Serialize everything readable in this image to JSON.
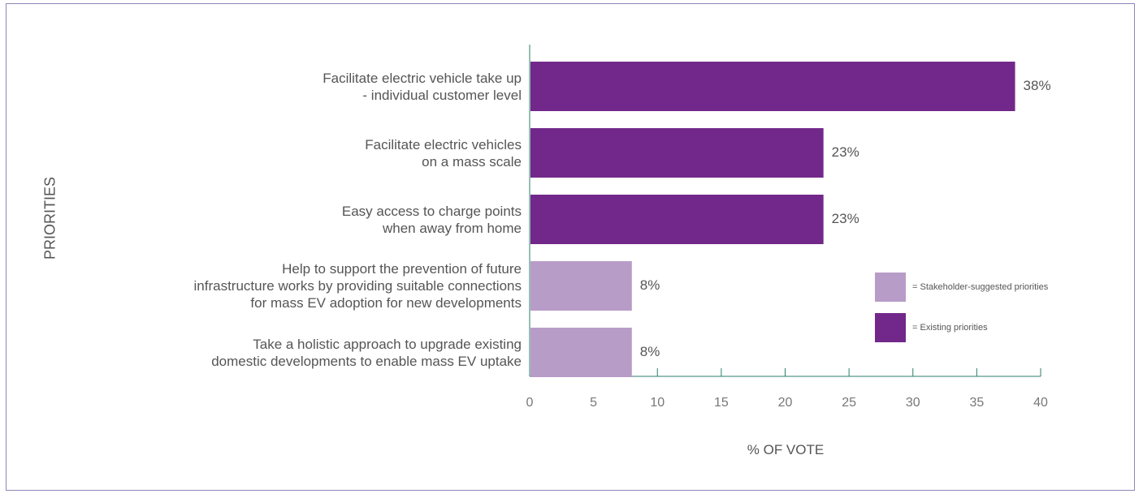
{
  "chart_data": {
    "type": "bar",
    "orientation": "horizontal",
    "title": "",
    "xlabel": "% OF VOTE",
    "ylabel": "PRIORITIES",
    "xlim": [
      0,
      40
    ],
    "xticks": [
      "0",
      "5",
      "10",
      "15",
      "20",
      "25",
      "30",
      "35",
      "40"
    ],
    "categories": [
      "Facilitate electric vehicle take up\n- individual customer level",
      "Facilitate electric vehicles\non a mass scale",
      "Easy access to charge points\nwhen away from home",
      "Help to support the prevention of future\ninfrastructure works by providing suitable connections\nfor mass EV adoption for new developments",
      "Take a holistic approach to upgrade existing\ndomestic developments to enable mass EV uptake"
    ],
    "values": [
      38,
      23,
      23,
      8,
      8
    ],
    "value_labels": [
      "38%",
      "23%",
      "23%",
      "8%",
      "8%"
    ],
    "groups": [
      "existing",
      "existing",
      "existing",
      "stakeholder",
      "stakeholder"
    ],
    "grid": false,
    "legend_position": "right",
    "legend": [
      {
        "key": "stakeholder",
        "label": "= Stakeholder-suggested priorities",
        "color": "#b89cc8"
      },
      {
        "key": "existing",
        "label": "= Existing priorities",
        "color": "#72288a"
      }
    ]
  }
}
